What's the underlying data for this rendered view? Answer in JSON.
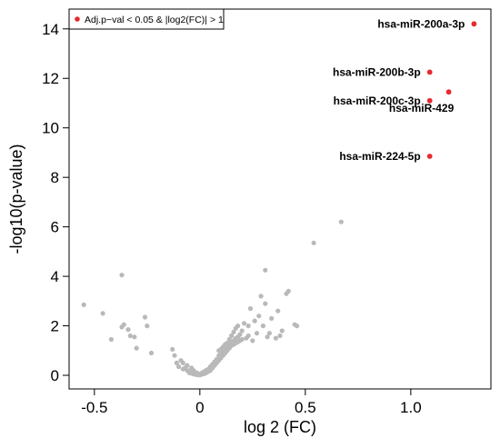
{
  "chart_data": {
    "type": "scatter",
    "title": "",
    "xlabel": "log 2 (FC)",
    "ylabel": "-log10(p-value)",
    "xlim": [
      -0.62,
      1.38
    ],
    "ylim": [
      -0.55,
      14.8
    ],
    "xticks": [
      -0.5,
      0,
      0.5,
      1.0
    ],
    "xtick_labels": [
      "-0.5",
      "0",
      "0.5",
      "1.0"
    ],
    "yticks": [
      0,
      2,
      4,
      6,
      8,
      10,
      12,
      14
    ],
    "ytick_labels": [
      "0",
      "2",
      "4",
      "6",
      "8",
      "10",
      "12",
      "14"
    ],
    "grid": false,
    "legend": {
      "position": "top-left",
      "entries": [
        {
          "label": "Adj.p−val < 0.05 & |log2(FC)| > 1",
          "color": "#e8292e"
        }
      ]
    },
    "colors": {
      "significant": "#e8292e",
      "non_significant": "#b9b9b9"
    },
    "significant_points": [
      {
        "x": 1.3,
        "y": 14.2,
        "label": "hsa-miR-200a-3p"
      },
      {
        "x": 1.09,
        "y": 12.25,
        "label": "hsa-miR-200b-3p"
      },
      {
        "x": 1.18,
        "y": 11.45,
        "label": "hsa-miR-429"
      },
      {
        "x": 1.09,
        "y": 11.1,
        "label": "hsa-miR-200c-3p"
      },
      {
        "x": 1.09,
        "y": 8.85,
        "label": "hsa-miR-224-5p"
      }
    ],
    "non_significant_points": [
      [
        -0.55,
        2.85
      ],
      [
        -0.46,
        2.5
      ],
      [
        -0.42,
        1.45
      ],
      [
        -0.37,
        4.05
      ],
      [
        -0.37,
        1.95
      ],
      [
        -0.36,
        2.05
      ],
      [
        -0.34,
        1.85
      ],
      [
        -0.33,
        1.6
      ],
      [
        -0.31,
        1.55
      ],
      [
        -0.3,
        1.1
      ],
      [
        -0.26,
        2.35
      ],
      [
        -0.25,
        2.0
      ],
      [
        -0.23,
        0.9
      ],
      [
        -0.13,
        1.05
      ],
      [
        -0.12,
        0.8
      ],
      [
        -0.11,
        0.5
      ],
      [
        -0.1,
        0.35
      ],
      [
        -0.09,
        0.6
      ],
      [
        -0.08,
        0.25
      ],
      [
        -0.08,
        0.5
      ],
      [
        -0.07,
        0.3
      ],
      [
        -0.06,
        0.2
      ],
      [
        -0.06,
        0.4
      ],
      [
        -0.05,
        0.15
      ],
      [
        -0.05,
        0.1
      ],
      [
        -0.04,
        0.3
      ],
      [
        -0.04,
        0.08
      ],
      [
        -0.03,
        0.2
      ],
      [
        -0.03,
        0.05
      ],
      [
        -0.02,
        0.12
      ],
      [
        -0.02,
        0.03
      ],
      [
        -0.01,
        0.08
      ],
      [
        -0.01,
        0.02
      ],
      [
        0.0,
        0.05
      ],
      [
        0.0,
        0.01
      ],
      [
        0.01,
        0.04
      ],
      [
        0.01,
        0.1
      ],
      [
        0.02,
        0.06
      ],
      [
        0.02,
        0.15
      ],
      [
        0.03,
        0.1
      ],
      [
        0.03,
        0.2
      ],
      [
        0.04,
        0.15
      ],
      [
        0.04,
        0.25
      ],
      [
        0.05,
        0.2
      ],
      [
        0.05,
        0.35
      ],
      [
        0.06,
        0.3
      ],
      [
        0.06,
        0.45
      ],
      [
        0.07,
        0.4
      ],
      [
        0.07,
        0.55
      ],
      [
        0.08,
        0.5
      ],
      [
        0.08,
        0.65
      ],
      [
        0.09,
        0.6
      ],
      [
        0.09,
        0.8
      ],
      [
        0.09,
        1.0
      ],
      [
        0.1,
        0.7
      ],
      [
        0.1,
        0.85
      ],
      [
        0.1,
        1.05
      ],
      [
        0.11,
        0.8
      ],
      [
        0.11,
        0.95
      ],
      [
        0.11,
        1.15
      ],
      [
        0.12,
        0.9
      ],
      [
        0.12,
        1.1
      ],
      [
        0.12,
        1.25
      ],
      [
        0.13,
        1.0
      ],
      [
        0.13,
        1.15
      ],
      [
        0.13,
        1.3
      ],
      [
        0.14,
        1.1
      ],
      [
        0.14,
        1.25
      ],
      [
        0.14,
        1.45
      ],
      [
        0.15,
        1.2
      ],
      [
        0.15,
        1.35
      ],
      [
        0.15,
        1.6
      ],
      [
        0.16,
        1.25
      ],
      [
        0.16,
        1.4
      ],
      [
        0.16,
        1.75
      ],
      [
        0.17,
        1.3
      ],
      [
        0.17,
        1.5
      ],
      [
        0.17,
        1.9
      ],
      [
        0.18,
        1.35
      ],
      [
        0.18,
        1.55
      ],
      [
        0.18,
        2.0
      ],
      [
        0.19,
        1.4
      ],
      [
        0.19,
        1.65
      ],
      [
        0.2,
        1.45
      ],
      [
        0.2,
        1.8
      ],
      [
        0.21,
        2.1
      ],
      [
        0.22,
        1.5
      ],
      [
        0.23,
        2.0
      ],
      [
        0.23,
        1.6
      ],
      [
        0.24,
        2.7
      ],
      [
        0.25,
        1.4
      ],
      [
        0.26,
        2.2
      ],
      [
        0.27,
        1.7
      ],
      [
        0.28,
        2.4
      ],
      [
        0.29,
        3.2
      ],
      [
        0.3,
        2.0
      ],
      [
        0.31,
        4.25
      ],
      [
        0.31,
        2.9
      ],
      [
        0.32,
        1.55
      ],
      [
        0.33,
        1.7
      ],
      [
        0.34,
        2.3
      ],
      [
        0.36,
        1.5
      ],
      [
        0.37,
        2.6
      ],
      [
        0.38,
        1.6
      ],
      [
        0.39,
        1.8
      ],
      [
        0.41,
        3.3
      ],
      [
        0.42,
        3.4
      ],
      [
        0.45,
        2.05
      ],
      [
        0.46,
        2.0
      ],
      [
        0.54,
        5.35
      ],
      [
        0.67,
        6.2
      ]
    ]
  }
}
